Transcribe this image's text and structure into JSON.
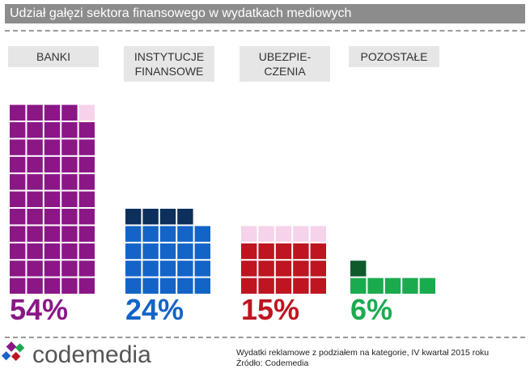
{
  "chart_data": {
    "type": "waffle",
    "title": "Udział gałęzi sektora finansowego w wydatkach mediowych",
    "series": [
      {
        "name": "BANKI",
        "values": [
          54
        ],
        "value_labels": [
          "54%"
        ],
        "color": "#8b1787",
        "empty_color": "#f6d3ea"
      },
      {
        "name": "INSTYTUCJE\nFINANSOWE",
        "values": [
          24
        ],
        "value_labels": [
          "24%"
        ],
        "color": "#1464c8",
        "partial_color": "#0d2f5c"
      },
      {
        "name": "UBEZPIE-\nCZENIA",
        "values": [
          15
        ],
        "value_labels": [
          "15%"
        ],
        "color": "#be1520",
        "empty_color": "#f6d3ea"
      },
      {
        "name": "POZOSTAŁE",
        "values": [
          6
        ],
        "value_labels": [
          "6%"
        ],
        "color": "#1bab4f",
        "partial_color": "#0f5a2a"
      }
    ]
  },
  "footer": {
    "logo": "codemedia",
    "note": "Wydatki reklamowe z podziałem na kategorie, IV kwartał 2015 roku",
    "source": "Źródło: Codemedia"
  }
}
